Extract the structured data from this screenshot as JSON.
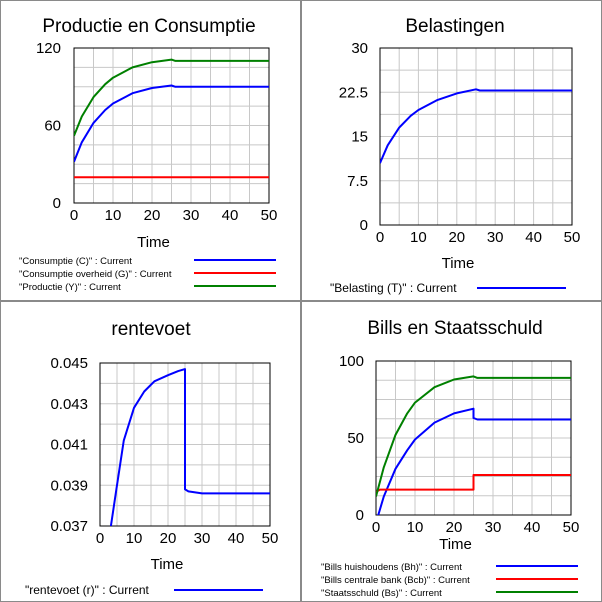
{
  "colors": {
    "blue": "#0000ff",
    "red": "#ff0000",
    "green": "#008000",
    "grid": "#c8c8c8"
  },
  "chart_data": [
    {
      "type": "line",
      "title": "Productie en Consumptie",
      "xlabel": "Time",
      "xlim": [
        0,
        50
      ],
      "ylim": [
        0,
        120
      ],
      "xticks": [
        "0",
        "10",
        "20",
        "30",
        "40",
        "50"
      ],
      "yticks": [
        "0",
        "60",
        "120"
      ],
      "series": [
        {
          "name": "\"Consumptie (C)\" : Current",
          "color": "#0000ff",
          "x": [
            0,
            2,
            5,
            8,
            10,
            15,
            20,
            25,
            26,
            30,
            40,
            50
          ],
          "y": [
            32,
            47,
            62,
            72,
            77,
            85,
            89,
            91,
            90,
            90,
            90,
            90
          ]
        },
        {
          "name": "\"Consumptie overheid (G)\" : Current",
          "color": "#ff0000",
          "x": [
            0,
            50
          ],
          "y": [
            20,
            20
          ]
        },
        {
          "name": "\"Productie (Y)\" : Current",
          "color": "#008000",
          "x": [
            0,
            2,
            5,
            8,
            10,
            15,
            20,
            25,
            26,
            30,
            40,
            50
          ],
          "y": [
            52,
            67,
            82,
            92,
            97,
            105,
            109,
            111,
            110,
            110,
            110,
            110
          ]
        }
      ]
    },
    {
      "type": "line",
      "title": "Belastingen",
      "xlabel": "Time",
      "xlim": [
        0,
        50
      ],
      "ylim": [
        0,
        30
      ],
      "xticks": [
        "0",
        "10",
        "20",
        "30",
        "40",
        "50"
      ],
      "yticks": [
        "0",
        "7.5",
        "15",
        "22.5",
        "30"
      ],
      "series": [
        {
          "name": "\"Belasting (T)\" : Current",
          "color": "#0000ff",
          "x": [
            0,
            2,
            5,
            8,
            10,
            15,
            20,
            25,
            26,
            30,
            40,
            50
          ],
          "y": [
            10.5,
            13.5,
            16.5,
            18.5,
            19.5,
            21.2,
            22.3,
            23,
            22.8,
            22.8,
            22.8,
            22.8
          ]
        }
      ]
    },
    {
      "type": "line",
      "title": "rentevoet",
      "xlabel": "Time",
      "xlim": [
        0,
        50
      ],
      "ylim": [
        0.037,
        0.045
      ],
      "xticks": [
        "0",
        "10",
        "20",
        "30",
        "40",
        "50"
      ],
      "yticks": [
        "0.037",
        "0.039",
        "0.041",
        "0.043",
        "0.045"
      ],
      "series": [
        {
          "name": "\"rentevoet (r)\" : Current",
          "color": "#0000ff",
          "x": [
            3.2,
            5,
            7,
            10,
            13,
            16,
            20,
            23,
            25,
            25,
            26,
            30,
            40,
            50
          ],
          "y": [
            0.037,
            0.039,
            0.0412,
            0.0428,
            0.0436,
            0.0441,
            0.0444,
            0.0446,
            0.0447,
            0.0388,
            0.0387,
            0.0386,
            0.0386,
            0.0386
          ]
        }
      ]
    },
    {
      "type": "line",
      "title": "Bills en Staatsschuld",
      "xlabel": "Time",
      "xlim": [
        0,
        50
      ],
      "ylim": [
        0,
        100
      ],
      "xticks": [
        "0",
        "10",
        "20",
        "30",
        "40",
        "50"
      ],
      "yticks": [
        "0",
        "50",
        "100"
      ],
      "series": [
        {
          "name": "\"Bills huishoudens (Bh)\" : Current",
          "color": "#0000ff",
          "x": [
            0,
            2,
            5,
            8,
            10,
            15,
            20,
            25,
            25,
            26,
            30,
            40,
            50
          ],
          "y": [
            -5,
            12,
            30,
            42,
            49,
            60,
            66,
            69,
            63,
            62,
            62,
            62,
            62
          ]
        },
        {
          "name": "\"Bills centrale bank (Bcb)\" : Current",
          "color": "#ff0000",
          "x": [
            0,
            1,
            25,
            25,
            50
          ],
          "y": [
            15,
            16.5,
            16.5,
            26,
            26
          ]
        },
        {
          "name": "\"Staatsschuld (Bs)\" : Current",
          "color": "#008000",
          "x": [
            0,
            2,
            5,
            8,
            10,
            15,
            20,
            25,
            26,
            30,
            40,
            50
          ],
          "y": [
            12,
            31,
            52,
            66,
            73,
            83,
            88,
            90,
            89,
            89,
            89,
            89
          ]
        }
      ]
    }
  ]
}
